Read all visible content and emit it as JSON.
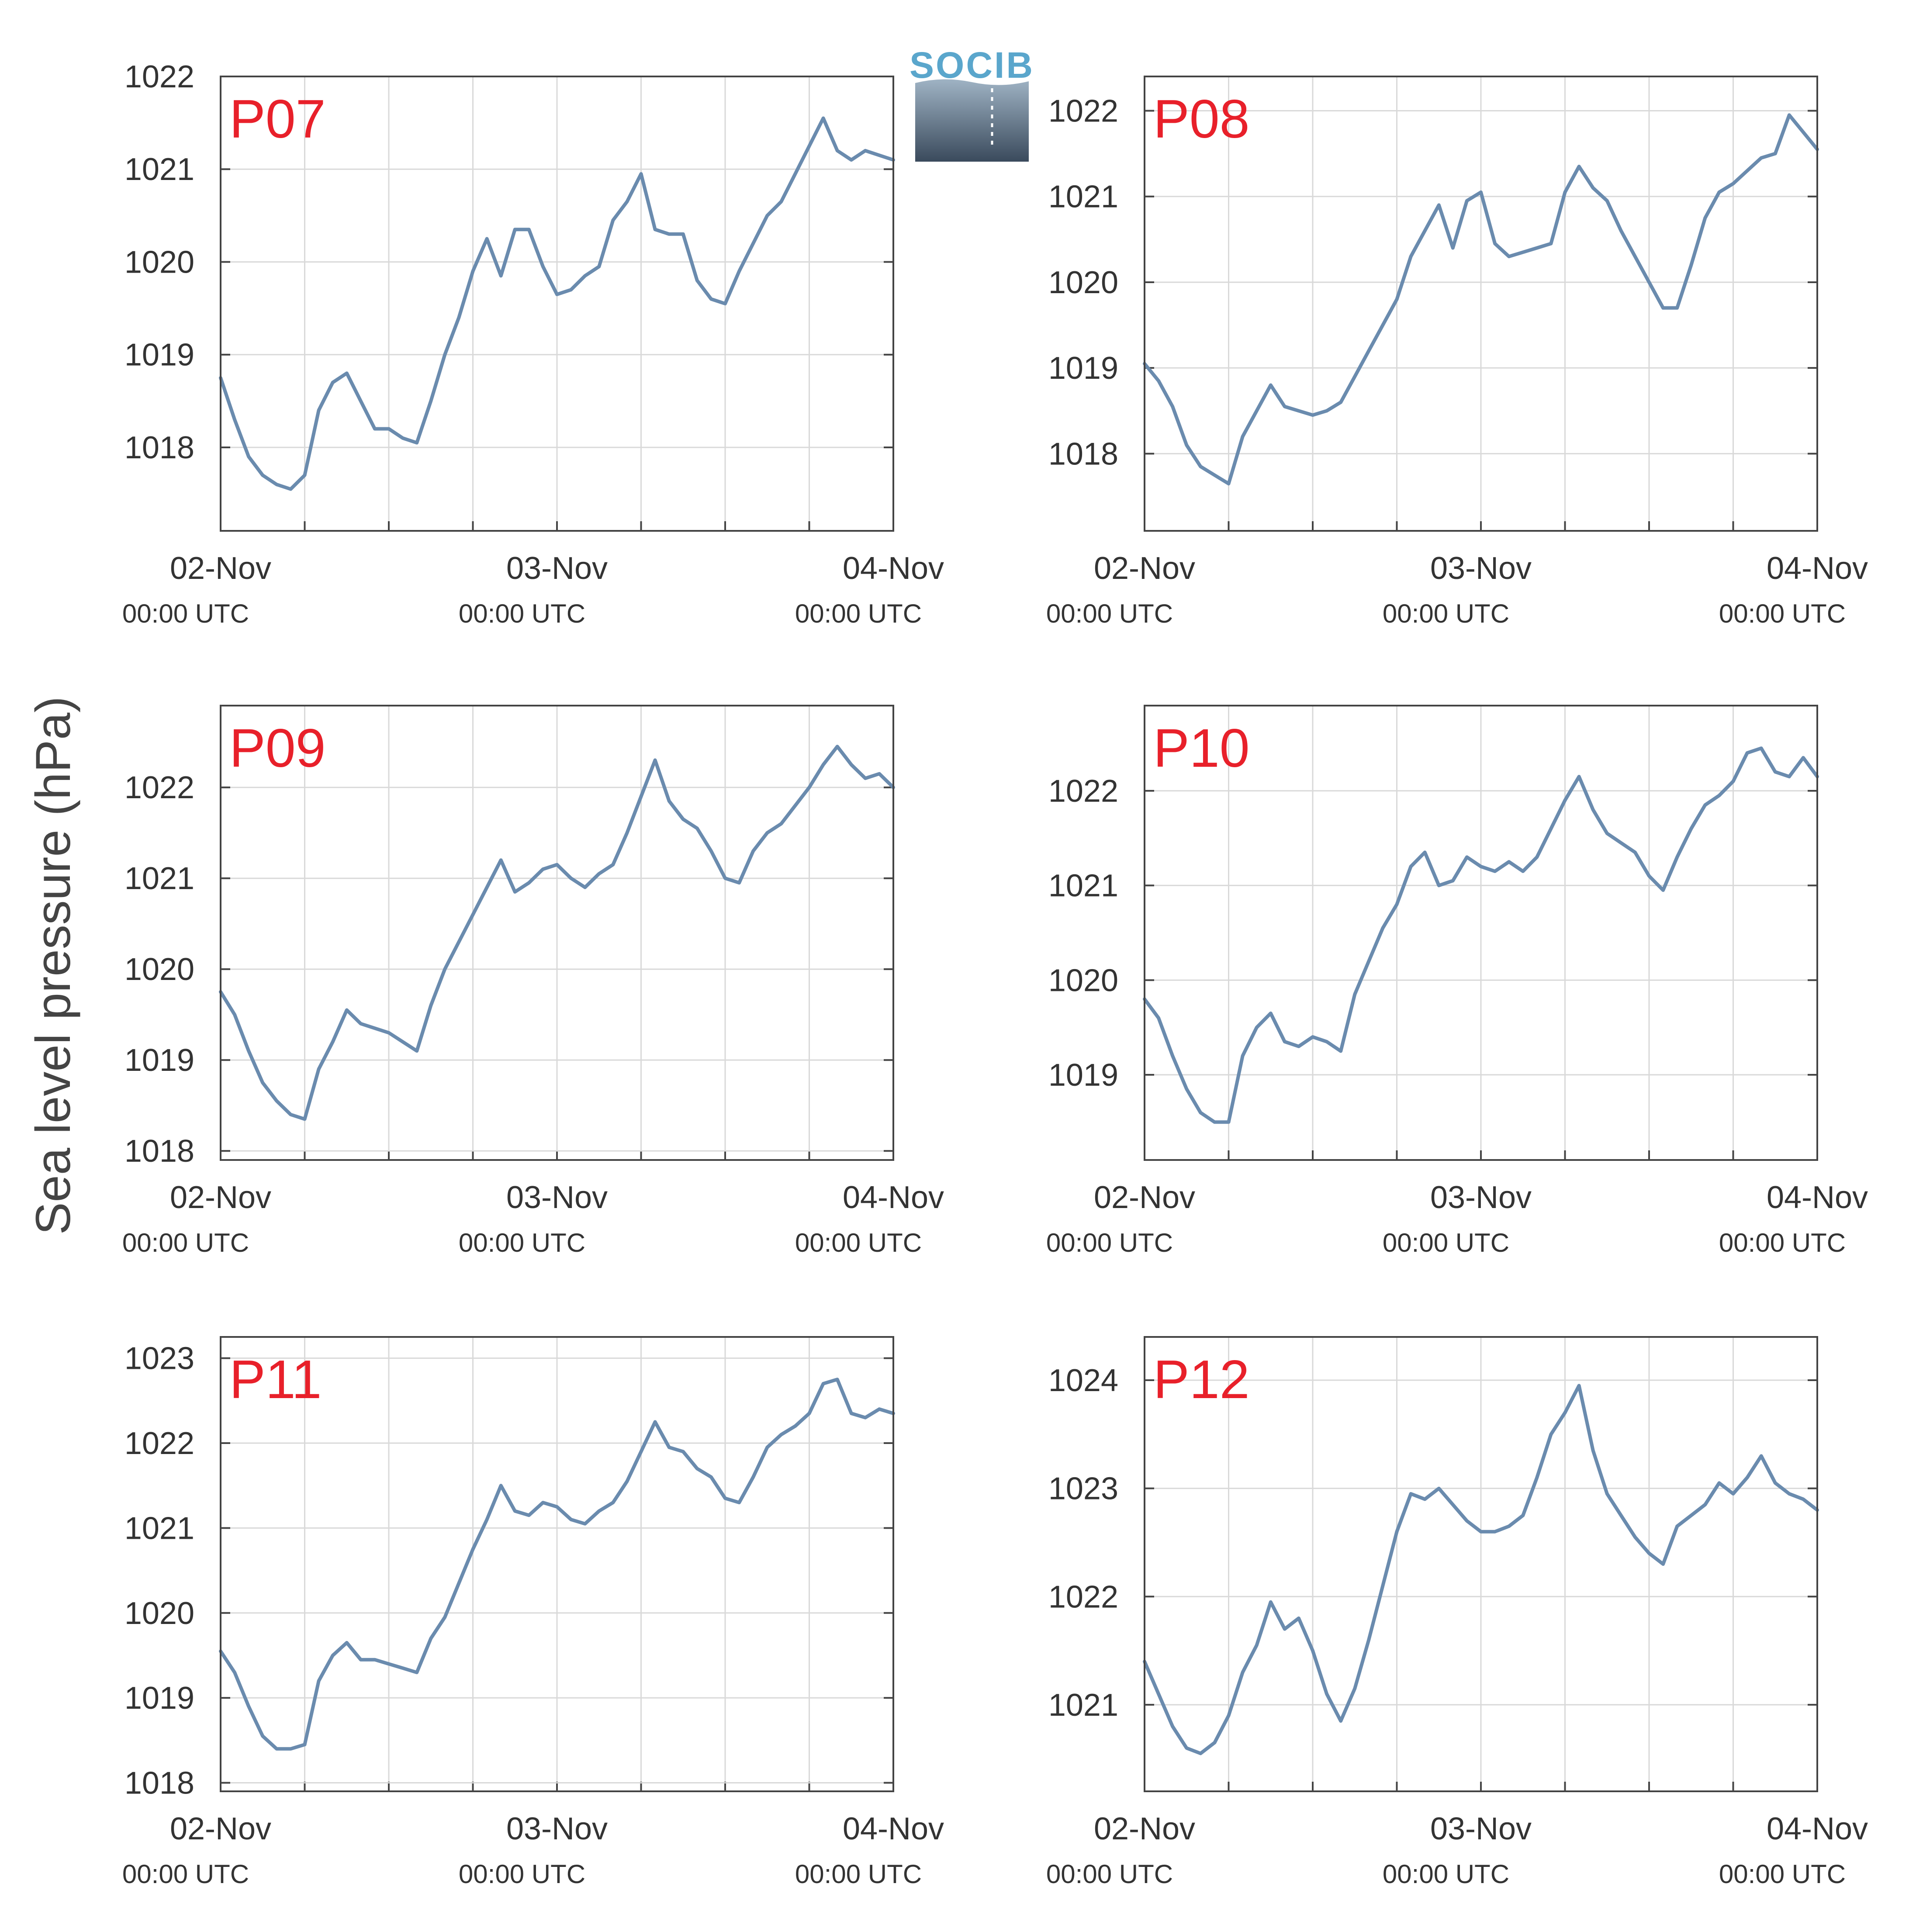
{
  "figure": {
    "ylabel": "Sea level pressure (hPa)",
    "logo_text": "SOCIB",
    "line_color": "#6a8bae",
    "label_color": "#e8202a",
    "grid_color": "#d9d9d9",
    "axis_color": "#444444",
    "text_color": "#333333"
  },
  "chart_data": [
    {
      "type": "line",
      "title": "P07",
      "xticks": [
        "02-Nov",
        "03-Nov",
        "04-Nov"
      ],
      "xtick_sub": [
        "00:00 UTC",
        "00:00 UTC",
        "00:00 UTC"
      ],
      "xlim": [
        0,
        48
      ],
      "ylim": [
        1017.1,
        1022.0
      ],
      "yticks": [
        1018,
        1019,
        1020,
        1021,
        1022
      ],
      "grid": true,
      "series": [
        {
          "x": [
            0,
            1,
            2,
            3,
            4,
            5,
            6,
            7,
            8,
            9,
            10,
            11,
            12,
            13,
            14,
            15,
            16,
            17,
            18,
            19,
            20,
            21,
            22,
            23,
            24,
            25,
            26,
            27,
            28,
            29,
            30,
            31,
            32,
            33,
            34,
            35,
            36,
            37,
            38,
            39,
            40,
            41,
            42,
            43,
            44,
            45,
            46,
            47,
            48
          ],
          "y": [
            1018.75,
            1018.3,
            1017.9,
            1017.7,
            1017.6,
            1017.55,
            1017.7,
            1018.4,
            1018.7,
            1018.8,
            1018.5,
            1018.2,
            1018.2,
            1018.1,
            1018.05,
            1018.5,
            1019.0,
            1019.4,
            1019.9,
            1020.25,
            1019.85,
            1020.35,
            1020.35,
            1019.95,
            1019.65,
            1019.7,
            1019.85,
            1019.95,
            1020.45,
            1020.65,
            1020.95,
            1020.35,
            1020.3,
            1020.3,
            1019.8,
            1019.6,
            1019.55,
            1019.9,
            1020.2,
            1020.5,
            1020.65,
            1020.95,
            1021.25,
            1021.55,
            1021.2,
            1021.1,
            1021.2,
            1021.15,
            1021.1
          ]
        }
      ]
    },
    {
      "type": "line",
      "title": "P08",
      "xticks": [
        "02-Nov",
        "03-Nov",
        "04-Nov"
      ],
      "xtick_sub": [
        "00:00 UTC",
        "00:00 UTC",
        "00:00 UTC"
      ],
      "xlim": [
        0,
        48
      ],
      "ylim": [
        1017.1,
        1022.4
      ],
      "yticks": [
        1018,
        1019,
        1020,
        1021,
        1022
      ],
      "grid": true,
      "series": [
        {
          "x": [
            0,
            1,
            2,
            3,
            4,
            5,
            6,
            7,
            8,
            9,
            10,
            11,
            12,
            13,
            14,
            15,
            16,
            17,
            18,
            19,
            20,
            21,
            22,
            23,
            24,
            25,
            26,
            27,
            28,
            29,
            30,
            31,
            32,
            33,
            34,
            35,
            36,
            37,
            38,
            39,
            40,
            41,
            42,
            43,
            44,
            45,
            46,
            47,
            48
          ],
          "y": [
            1019.05,
            1018.85,
            1018.55,
            1018.1,
            1017.85,
            1017.75,
            1017.65,
            1018.2,
            1018.5,
            1018.8,
            1018.55,
            1018.5,
            1018.45,
            1018.5,
            1018.6,
            1018.9,
            1019.2,
            1019.5,
            1019.8,
            1020.3,
            1020.6,
            1020.9,
            1020.4,
            1020.95,
            1021.05,
            1020.45,
            1020.3,
            1020.35,
            1020.4,
            1020.45,
            1021.05,
            1021.35,
            1021.1,
            1020.95,
            1020.6,
            1020.3,
            1020.0,
            1019.7,
            1019.7,
            1020.2,
            1020.75,
            1021.05,
            1021.15,
            1021.3,
            1021.45,
            1021.5,
            1021.95,
            1021.75,
            1021.55
          ]
        }
      ]
    },
    {
      "type": "line",
      "title": "P09",
      "xticks": [
        "02-Nov",
        "03-Nov",
        "04-Nov"
      ],
      "xtick_sub": [
        "00:00 UTC",
        "00:00 UTC",
        "00:00 UTC"
      ],
      "xlim": [
        0,
        48
      ],
      "ylim": [
        1017.9,
        1022.9
      ],
      "yticks": [
        1018,
        1019,
        1020,
        1021,
        1022
      ],
      "grid": true,
      "series": [
        {
          "x": [
            0,
            1,
            2,
            3,
            4,
            5,
            6,
            7,
            8,
            9,
            10,
            11,
            12,
            13,
            14,
            15,
            16,
            17,
            18,
            19,
            20,
            21,
            22,
            23,
            24,
            25,
            26,
            27,
            28,
            29,
            30,
            31,
            32,
            33,
            34,
            35,
            36,
            37,
            38,
            39,
            40,
            41,
            42,
            43,
            44,
            45,
            46,
            47,
            48
          ],
          "y": [
            1019.75,
            1019.5,
            1019.1,
            1018.75,
            1018.55,
            1018.4,
            1018.35,
            1018.9,
            1019.2,
            1019.55,
            1019.4,
            1019.35,
            1019.3,
            1019.2,
            1019.1,
            1019.6,
            1020.0,
            1020.3,
            1020.6,
            1020.9,
            1021.2,
            1020.85,
            1020.95,
            1021.1,
            1021.15,
            1021.0,
            1020.9,
            1021.05,
            1021.15,
            1021.5,
            1021.9,
            1022.3,
            1021.85,
            1021.65,
            1021.55,
            1021.3,
            1021.0,
            1020.95,
            1021.3,
            1021.5,
            1021.6,
            1021.8,
            1022.0,
            1022.25,
            1022.45,
            1022.25,
            1022.1,
            1022.15,
            1022.0
          ]
        }
      ]
    },
    {
      "type": "line",
      "title": "P10",
      "xticks": [
        "02-Nov",
        "03-Nov",
        "04-Nov"
      ],
      "xtick_sub": [
        "00:00 UTC",
        "00:00 UTC",
        "00:00 UTC"
      ],
      "xlim": [
        0,
        48
      ],
      "ylim": [
        1018.1,
        1022.9
      ],
      "yticks": [
        1019,
        1020,
        1021,
        1022
      ],
      "grid": true,
      "series": [
        {
          "x": [
            0,
            1,
            2,
            3,
            4,
            5,
            6,
            7,
            8,
            9,
            10,
            11,
            12,
            13,
            14,
            15,
            16,
            17,
            18,
            19,
            20,
            21,
            22,
            23,
            24,
            25,
            26,
            27,
            28,
            29,
            30,
            31,
            32,
            33,
            34,
            35,
            36,
            37,
            38,
            39,
            40,
            41,
            42,
            43,
            44,
            45,
            46,
            47,
            48
          ],
          "y": [
            1019.8,
            1019.6,
            1019.2,
            1018.85,
            1018.6,
            1018.5,
            1018.5,
            1019.2,
            1019.5,
            1019.65,
            1019.35,
            1019.3,
            1019.4,
            1019.35,
            1019.25,
            1019.85,
            1020.2,
            1020.55,
            1020.8,
            1021.2,
            1021.35,
            1021.0,
            1021.05,
            1021.3,
            1021.2,
            1021.15,
            1021.25,
            1021.15,
            1021.3,
            1021.6,
            1021.9,
            1022.15,
            1021.8,
            1021.55,
            1021.45,
            1021.35,
            1021.1,
            1020.95,
            1021.3,
            1021.6,
            1021.85,
            1021.95,
            1022.1,
            1022.4,
            1022.45,
            1022.2,
            1022.15,
            1022.35,
            1022.15
          ]
        }
      ]
    },
    {
      "type": "line",
      "title": "P11",
      "xticks": [
        "02-Nov",
        "03-Nov",
        "04-Nov"
      ],
      "xtick_sub": [
        "00:00 UTC",
        "00:00 UTC",
        "00:00 UTC"
      ],
      "xlim": [
        0,
        48
      ],
      "ylim": [
        1017.9,
        1023.25
      ],
      "yticks": [
        1018,
        1019,
        1020,
        1021,
        1022,
        1023
      ],
      "grid": true,
      "series": [
        {
          "x": [
            0,
            1,
            2,
            3,
            4,
            5,
            6,
            7,
            8,
            9,
            10,
            11,
            12,
            13,
            14,
            15,
            16,
            17,
            18,
            19,
            20,
            21,
            22,
            23,
            24,
            25,
            26,
            27,
            28,
            29,
            30,
            31,
            32,
            33,
            34,
            35,
            36,
            37,
            38,
            39,
            40,
            41,
            42,
            43,
            44,
            45,
            46,
            47,
            48
          ],
          "y": [
            1019.55,
            1019.3,
            1018.9,
            1018.55,
            1018.4,
            1018.4,
            1018.45,
            1019.2,
            1019.5,
            1019.65,
            1019.45,
            1019.45,
            1019.4,
            1019.35,
            1019.3,
            1019.7,
            1019.95,
            1020.35,
            1020.75,
            1021.1,
            1021.5,
            1021.2,
            1021.15,
            1021.3,
            1021.25,
            1021.1,
            1021.05,
            1021.2,
            1021.3,
            1021.55,
            1021.9,
            1022.25,
            1021.95,
            1021.9,
            1021.7,
            1021.6,
            1021.35,
            1021.3,
            1021.6,
            1021.95,
            1022.1,
            1022.2,
            1022.35,
            1022.7,
            1022.75,
            1022.35,
            1022.3,
            1022.4,
            1022.35
          ]
        }
      ]
    },
    {
      "type": "line",
      "title": "P12",
      "xticks": [
        "02-Nov",
        "03-Nov",
        "04-Nov"
      ],
      "xtick_sub": [
        "00:00 UTC",
        "00:00 UTC",
        "00:00 UTC"
      ],
      "xlim": [
        0,
        48
      ],
      "ylim": [
        1020.2,
        1024.4
      ],
      "yticks": [
        1021,
        1022,
        1023,
        1024
      ],
      "grid": true,
      "series": [
        {
          "x": [
            0,
            1,
            2,
            3,
            4,
            5,
            6,
            7,
            8,
            9,
            10,
            11,
            12,
            13,
            14,
            15,
            16,
            17,
            18,
            19,
            20,
            21,
            22,
            23,
            24,
            25,
            26,
            27,
            28,
            29,
            30,
            31,
            32,
            33,
            34,
            35,
            36,
            37,
            38,
            39,
            40,
            41,
            42,
            43,
            44,
            45,
            46,
            47,
            48
          ],
          "y": [
            1021.4,
            1021.1,
            1020.8,
            1020.6,
            1020.55,
            1020.65,
            1020.9,
            1021.3,
            1021.55,
            1021.95,
            1021.7,
            1021.8,
            1021.5,
            1021.1,
            1020.85,
            1021.15,
            1021.6,
            1022.1,
            1022.6,
            1022.95,
            1022.9,
            1023.0,
            1022.85,
            1022.7,
            1022.6,
            1022.6,
            1022.65,
            1022.75,
            1023.1,
            1023.5,
            1023.7,
            1023.95,
            1023.35,
            1022.95,
            1022.75,
            1022.55,
            1022.4,
            1022.3,
            1022.65,
            1022.75,
            1022.85,
            1023.05,
            1022.95,
            1023.1,
            1023.3,
            1023.05,
            1022.95,
            1022.9,
            1022.8
          ]
        }
      ]
    }
  ]
}
